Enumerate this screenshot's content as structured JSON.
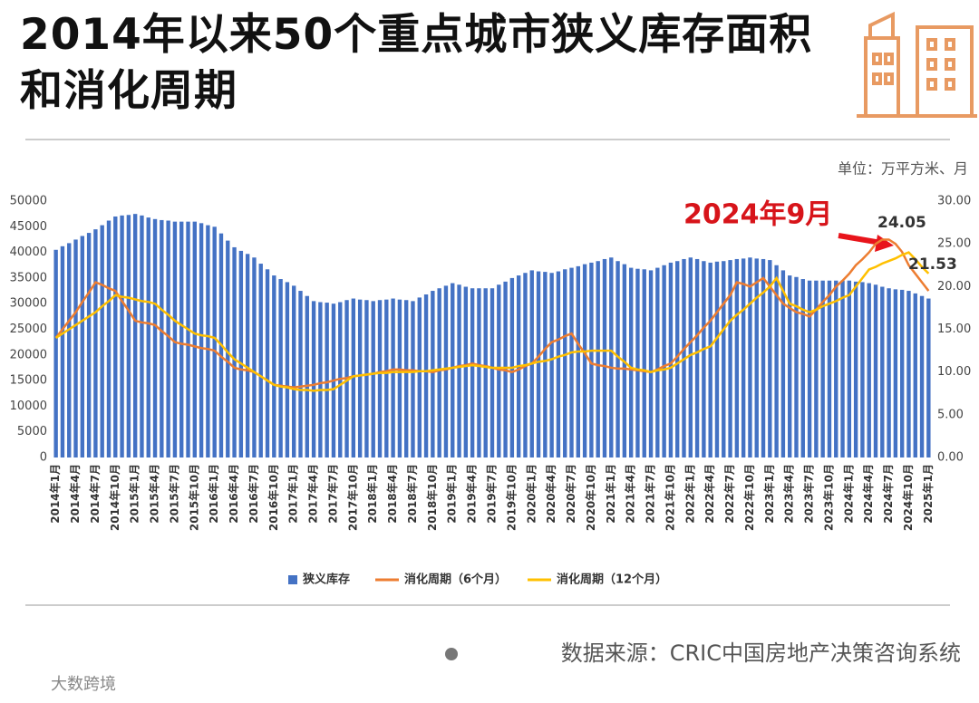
{
  "chart_data": {
    "type": "bar",
    "title": "2014年以来50个重点城市狭义库存面积和消化周期",
    "unit": "单位：万平方米、月",
    "categories": [
      "2014年1月",
      null,
      null,
      "2014年4月",
      null,
      null,
      "2014年7月",
      null,
      null,
      "2014年10月",
      null,
      null,
      "2015年1月",
      null,
      null,
      "2015年4月",
      null,
      null,
      "2015年7月",
      null,
      null,
      "2015年10月",
      null,
      null,
      "2016年1月",
      null,
      null,
      "2016年4月",
      null,
      null,
      "2016年7月",
      null,
      null,
      "2016年10月",
      null,
      null,
      "2017年1月",
      null,
      null,
      "2017年4月",
      null,
      null,
      "2017年7月",
      null,
      null,
      "2017年10月",
      null,
      null,
      "2018年1月",
      null,
      null,
      "2018年4月",
      null,
      null,
      "2018年7月",
      null,
      null,
      "2018年10月",
      null,
      null,
      "2019年1月",
      null,
      null,
      "2019年4月",
      null,
      null,
      "2019年7月",
      null,
      null,
      "2019年10月",
      null,
      null,
      "2020年1月",
      null,
      null,
      "2020年4月",
      null,
      null,
      "2020年7月",
      null,
      null,
      "2020年10月",
      null,
      null,
      "2021年1月",
      null,
      null,
      "2021年4月",
      null,
      null,
      "2021年7月",
      null,
      null,
      "2021年10月",
      null,
      null,
      "2022年1月",
      null,
      null,
      "2022年4月",
      null,
      null,
      "2022年7月",
      null,
      null,
      "2022年10月",
      null,
      null,
      "2023年1月",
      null,
      null,
      "2023年4月",
      null,
      null,
      "2023年7月",
      null,
      null,
      "2023年10月",
      null,
      null,
      "2024年1月",
      null,
      null,
      "2024年4月",
      null,
      null,
      "2024年7月",
      null,
      null,
      "2024年10月",
      null,
      null,
      "2025年1月"
    ],
    "series": [
      {
        "name": "狭义库存",
        "type": "bar",
        "color": "#4472c4",
        "values": [
          40500,
          41200,
          41800,
          42500,
          43200,
          43800,
          44500,
          45300,
          46200,
          47000,
          47200,
          47300,
          47500,
          47200,
          46800,
          46500,
          46300,
          46200,
          46000,
          46000,
          46000,
          46000,
          45700,
          45300,
          45000,
          43700,
          42300,
          41000,
          40300,
          39700,
          39000,
          37800,
          36700,
          35500,
          34800,
          34200,
          33500,
          32500,
          31500,
          30500,
          30300,
          30200,
          30000,
          30300,
          30700,
          31000,
          30800,
          30700,
          30500,
          30700,
          30800,
          31000,
          30800,
          30700,
          30500,
          31200,
          31800,
          32500,
          33000,
          33500,
          34000,
          33700,
          33300,
          33000,
          33000,
          33000,
          33000,
          33700,
          34300,
          35000,
          35500,
          36000,
          36500,
          36300,
          36200,
          36000,
          36300,
          36700,
          37000,
          37300,
          37700,
          38000,
          38300,
          38700,
          39000,
          38300,
          37700,
          37000,
          36800,
          36700,
          36500,
          37000,
          37500,
          38000,
          38300,
          38700,
          39000,
          38700,
          38300,
          38000,
          38200,
          38300,
          38500,
          38700,
          38800,
          39000,
          38800,
          38700,
          38500,
          37500,
          36500,
          35500,
          35200,
          34800,
          34500,
          34500,
          34500,
          34500,
          34500,
          34500,
          34500,
          34300,
          34200,
          34000,
          33700,
          33300,
          33000,
          32800,
          32700,
          32500,
          32000,
          31500,
          31000
        ]
      },
      {
        "name": "消化周期（6个月）",
        "type": "line",
        "axis": "y2",
        "color": "#ed7d31",
        "values": [
          14,
          15,
          16,
          17,
          18.2,
          19.3,
          20.5,
          20.2,
          19.8,
          19.5,
          18.3,
          17.2,
          16,
          15.8,
          15.7,
          15.5,
          14.8,
          14.2,
          13.5,
          13.3,
          13.2,
          13,
          12.8,
          12.7,
          12.5,
          11.8,
          11.2,
          10.5,
          10.3,
          10.2,
          10,
          9.5,
          9,
          8.5,
          8.4,
          8.3,
          8.2,
          8.3,
          8.4,
          8.5,
          8.7,
          8.8,
          9,
          9.2,
          9.3,
          9.5,
          9.6,
          9.7,
          9.8,
          10,
          10.1,
          10.3,
          10.3,
          10.2,
          10.2,
          10.1,
          10.1,
          10,
          10.2,
          10.3,
          10.5,
          10.7,
          10.8,
          11,
          10.8,
          10.7,
          10.5,
          10.3,
          10.2,
          10,
          10.3,
          10.7,
          11,
          11.8,
          12.7,
          13.5,
          13.8,
          14.2,
          14.5,
          13.3,
          12.2,
          11,
          10.8,
          10.7,
          10.5,
          10.4,
          10.4,
          10.3,
          10.2,
          10.1,
          10,
          10.3,
          10.7,
          11,
          11.8,
          12.7,
          13.5,
          14.3,
          15.2,
          16,
          17,
          18,
          19,
          20.5,
          20.3,
          20,
          20.5,
          21,
          20,
          19,
          18,
          17.5,
          17,
          16.8,
          16.5,
          17.3,
          18.2,
          19,
          20,
          20.7,
          21.5,
          22.5,
          23.2,
          24,
          25,
          25.5,
          25.5,
          25,
          24.05,
          22.5,
          21.5,
          20.5,
          19.5
        ]
      },
      {
        "name": "消化周期（12个月）",
        "type": "line",
        "axis": "y2",
        "color": "#ffc000",
        "values": [
          14,
          14.5,
          15,
          15.5,
          16,
          16.5,
          17,
          17.7,
          18.3,
          19,
          18.8,
          18.7,
          18.5,
          18.3,
          18.2,
          18,
          17.3,
          16.7,
          16,
          15.5,
          15,
          14.5,
          14.3,
          14.2,
          14,
          13.2,
          12.3,
          11.5,
          11,
          10.5,
          10,
          9.5,
          9,
          8.5,
          8.3,
          8.2,
          8,
          7.9,
          7.9,
          7.8,
          7.9,
          7.9,
          8,
          8.5,
          9,
          9.5,
          9.6,
          9.7,
          9.8,
          9.9,
          9.9,
          10,
          10,
          10,
          10,
          10.1,
          10.1,
          10.2,
          10.3,
          10.4,
          10.5,
          10.6,
          10.7,
          10.8,
          10.7,
          10.6,
          10.5,
          10.5,
          10.5,
          10.5,
          10.7,
          10.8,
          11,
          11.2,
          11.3,
          11.5,
          11.8,
          12,
          12.3,
          12.4,
          12.4,
          12.5,
          12.5,
          12.5,
          12.5,
          11.8,
          11.2,
          10.5,
          10.3,
          10.2,
          10,
          10.2,
          10.3,
          10.5,
          11,
          11.5,
          12,
          12.3,
          12.7,
          13,
          14,
          15,
          16,
          16.7,
          17.3,
          18,
          18.7,
          19.3,
          20,
          21,
          19.5,
          18,
          17.7,
          17.3,
          17,
          17.3,
          17.7,
          18,
          18.3,
          18.7,
          19,
          20,
          21,
          22,
          22.3,
          22.7,
          23,
          23.3,
          23.7,
          24,
          23.2,
          22.3,
          21.53
        ]
      }
    ],
    "ylim": [
      0,
      50000
    ],
    "yticks": [
      0,
      5000,
      10000,
      15000,
      20000,
      25000,
      30000,
      35000,
      40000,
      45000,
      50000
    ],
    "y2lim": [
      0,
      30
    ],
    "y2ticks": [
      {
        "value": 0,
        "label": "0.00"
      },
      {
        "value": 5,
        "label": "5.00"
      },
      {
        "value": 10,
        "label": "10.00"
      },
      {
        "value": 15,
        "label": "15.00"
      },
      {
        "value": 20,
        "label": "20.00"
      },
      {
        "value": 25,
        "label": "25.00"
      },
      {
        "value": 30,
        "label": "30.00"
      }
    ],
    "grid": false,
    "legend": "bottom",
    "annotations": [
      "2024年9月",
      "24.05",
      "21.53"
    ]
  },
  "source": "数据来源：CRIC中国房地产决策咨询系统",
  "watermark": "大数跨境"
}
